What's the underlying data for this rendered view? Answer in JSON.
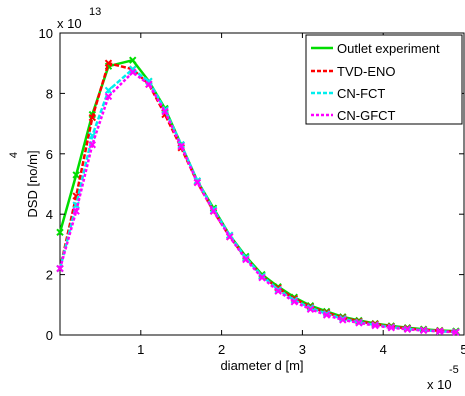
{
  "chart_data": {
    "type": "line",
    "xlabel": "diameter d [m]",
    "ylabel": "DSD [no/m",
    "ylabel_superscript": "4",
    "ylabel_suffix": "]",
    "x_multiplier_base": "x 10",
    "x_multiplier_exp": "-5",
    "y_multiplier_base": "x 10",
    "y_multiplier_exp": "13",
    "xlim": [
      0.0,
      5.0
    ],
    "ylim": [
      0,
      10
    ],
    "xticks": [
      1,
      2,
      3,
      4,
      5
    ],
    "yticks": [
      0,
      2,
      4,
      6,
      8,
      10
    ],
    "xtick_labels": [
      "1",
      "2",
      "3",
      "4",
      "5"
    ],
    "ytick_labels": [
      "0",
      "2",
      "4",
      "6",
      "8",
      "10"
    ],
    "grid": false,
    "legend_position": "top-right",
    "x": [
      0.0,
      0.2,
      0.4,
      0.6,
      0.9,
      1.1,
      1.3,
      1.5,
      1.7,
      1.9,
      2.1,
      2.3,
      2.5,
      2.7,
      2.9,
      3.1,
      3.3,
      3.5,
      3.7,
      3.9,
      4.1,
      4.3,
      4.5,
      4.7,
      4.9
    ],
    "series": [
      {
        "name": "Outlet experiment",
        "color": "#00dd00",
        "values": [
          3.4,
          5.3,
          7.3,
          8.9,
          9.1,
          8.4,
          7.5,
          6.3,
          5.1,
          4.2,
          3.3,
          2.6,
          2.0,
          1.6,
          1.25,
          0.97,
          0.78,
          0.6,
          0.48,
          0.38,
          0.3,
          0.24,
          0.19,
          0.15,
          0.13
        ]
      },
      {
        "name": "TVD-ENO",
        "color": "#ff0000",
        "values": [
          2.2,
          4.6,
          7.2,
          9.0,
          8.8,
          8.3,
          7.3,
          6.2,
          5.05,
          4.1,
          3.25,
          2.55,
          1.95,
          1.55,
          1.2,
          0.93,
          0.74,
          0.57,
          0.45,
          0.36,
          0.28,
          0.22,
          0.17,
          0.14,
          0.11
        ]
      },
      {
        "name": "CN-FCT",
        "color": "#00eeee",
        "values": [
          2.2,
          4.3,
          6.6,
          8.1,
          8.8,
          8.4,
          7.45,
          6.3,
          5.1,
          4.15,
          3.3,
          2.55,
          1.95,
          1.5,
          1.15,
          0.9,
          0.7,
          0.54,
          0.42,
          0.33,
          0.26,
          0.2,
          0.16,
          0.12,
          0.1
        ]
      },
      {
        "name": "CN-GFCT",
        "color": "#ff00ff",
        "values": [
          2.2,
          4.1,
          6.3,
          7.9,
          8.7,
          8.3,
          7.4,
          6.25,
          5.05,
          4.1,
          3.25,
          2.5,
          1.9,
          1.45,
          1.1,
          0.85,
          0.66,
          0.5,
          0.4,
          0.31,
          0.24,
          0.19,
          0.15,
          0.12,
          0.09
        ]
      }
    ]
  }
}
